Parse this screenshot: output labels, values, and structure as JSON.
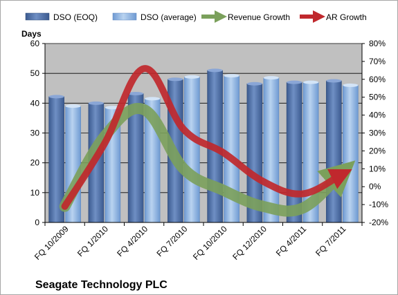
{
  "chart_data": {
    "type": "bar",
    "title": "Seagate Technology PLC",
    "ylabel": "Days",
    "ylim": [
      0,
      60
    ],
    "yticks": [
      "0",
      "10",
      "20",
      "30",
      "40",
      "50",
      "60"
    ],
    "y2lim": [
      -20,
      80
    ],
    "y2ticks": [
      "-20%",
      "-10%",
      "0%",
      "10%",
      "20%",
      "30%",
      "40%",
      "50%",
      "60%",
      "70%",
      "80%"
    ],
    "categories": [
      "FQ 10/2009",
      "FQ 1/2010",
      "FQ 4/2010",
      "FQ 7/2010",
      "FQ 10/2010",
      "FQ 12/2010",
      "FQ 4/2011",
      "FQ 7/2011"
    ],
    "bar_series": [
      {
        "name": "DSO (EOQ)",
        "color": "#4f6fa6",
        "values": [
          42.2,
          40.0,
          43.2,
          48.0,
          51.0,
          46.5,
          47.0,
          47.5
        ]
      },
      {
        "name": "DSO (average)",
        "color": "#8fb4e0",
        "values": [
          39.0,
          38.5,
          41.5,
          48.8,
          49.2,
          48.5,
          47.0,
          46.0
        ]
      }
    ],
    "line_series": [
      {
        "name": "Revenue Growth",
        "color": "#7ba05b",
        "axis": "right",
        "values": [
          -11,
          28,
          43,
          10,
          -2,
          -11,
          -12,
          8
        ]
      },
      {
        "name": "AR Growth",
        "color": "#c0282d",
        "axis": "right",
        "values": [
          -11,
          24,
          66,
          32,
          19,
          3,
          -4,
          7
        ]
      }
    ],
    "grid": true,
    "plot_background": "#c0c0c0",
    "legend_position": "top"
  }
}
